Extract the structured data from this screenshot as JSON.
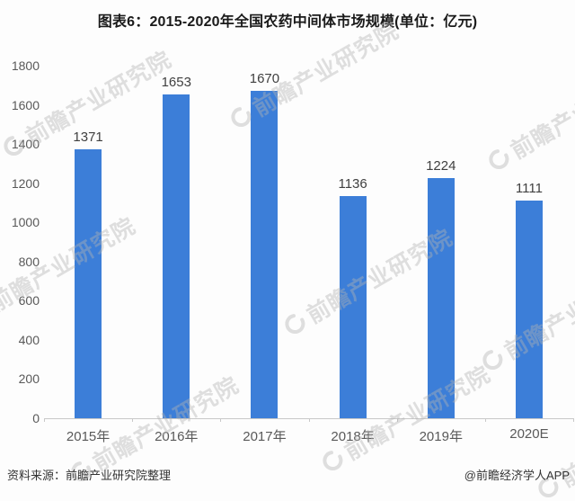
{
  "chart_data": {
    "type": "bar",
    "title": "图表6：2015-2020年全国农药中间体市场规模(单位：亿元)",
    "categories": [
      "2015年",
      "2016年",
      "2017年",
      "2018年",
      "2019年",
      "2020E"
    ],
    "values": [
      1371,
      1653,
      1670,
      1136,
      1224,
      1111
    ],
    "xlabel": "",
    "ylabel": "",
    "unit": "亿元",
    "ylim": [
      0,
      1800
    ],
    "yticks": [
      0,
      200,
      400,
      600,
      800,
      1000,
      1200,
      1400,
      1600,
      1800
    ],
    "grid": false,
    "legend": false,
    "data_labels": true,
    "bar_color": "#3c7ed8",
    "axis_line_color": "#c9c9c9",
    "value_label_color": "#404040",
    "tick_label_color": "#595959"
  },
  "watermark": {
    "text": "前瞻产业研究院"
  },
  "footer": {
    "source": "资料来源：前瞻产业研究院整理",
    "credit": "@前瞻经济学人APP"
  }
}
